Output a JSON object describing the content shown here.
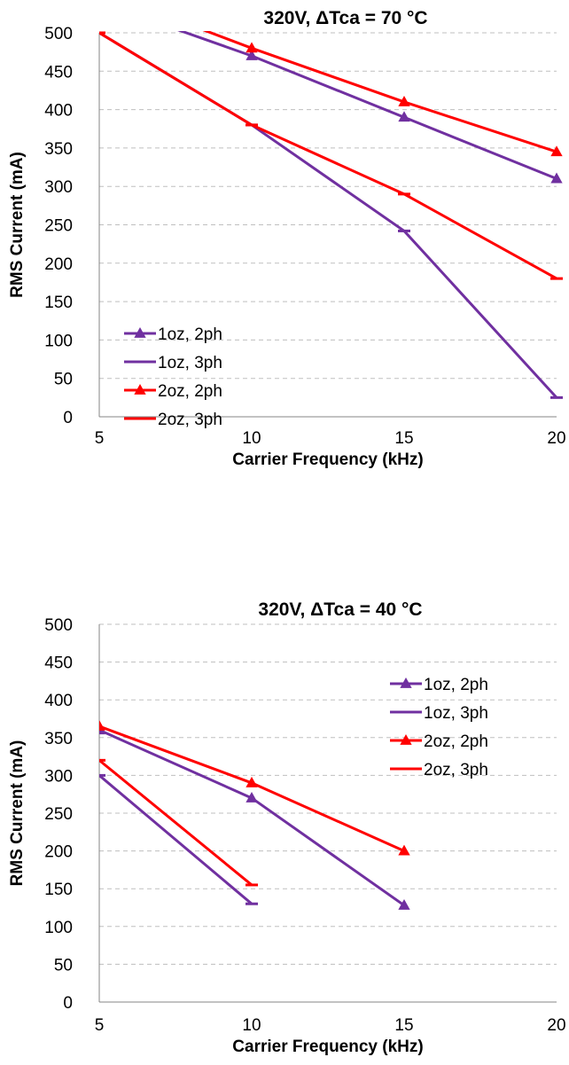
{
  "chart_data": [
    {
      "type": "line",
      "title": "320V, ΔTca = 70 °C",
      "xlabel": "Carrier Frequency (kHz)",
      "ylabel": "RMS Current (mA)",
      "xlim": [
        5,
        20
      ],
      "ylim": [
        0,
        500
      ],
      "x_ticks": [
        "5",
        "10",
        "15",
        "20"
      ],
      "y_ticks": [
        "0",
        "50",
        "100",
        "150",
        "200",
        "250",
        "300",
        "350",
        "400",
        "450",
        "500"
      ],
      "grid": "horizontal dashed",
      "legend_position": "lower-left",
      "series": [
        {
          "name": "1oz, 2ph",
          "color": "#7030A0",
          "marker": "triangle",
          "x": [
            5,
            10,
            15,
            20
          ],
          "values": [
            540,
            470,
            390,
            310
          ]
        },
        {
          "name": "1oz, 3ph",
          "color": "#7030A0",
          "marker": "dash",
          "x": [
            5,
            10,
            15,
            20
          ],
          "values": [
            500,
            380,
            242,
            25
          ]
        },
        {
          "name": "2oz, 2ph",
          "color": "#FF0000",
          "marker": "triangle",
          "x": [
            5,
            10,
            15,
            20
          ],
          "values": [
            555,
            480,
            410,
            345
          ]
        },
        {
          "name": "2oz, 3ph",
          "color": "#FF0000",
          "marker": "dash",
          "x": [
            5,
            10,
            15,
            20
          ],
          "values": [
            500,
            380,
            290,
            180
          ]
        }
      ]
    },
    {
      "type": "line",
      "title": "320V, ΔTca = 40 °C",
      "xlabel": "Carrier Frequency (kHz)",
      "ylabel": "RMS Current (mA)",
      "xlim": [
        5,
        20
      ],
      "ylim": [
        0,
        500
      ],
      "x_ticks": [
        "5",
        "10",
        "15",
        "20"
      ],
      "y_ticks": [
        "0",
        "50",
        "100",
        "150",
        "200",
        "250",
        "300",
        "350",
        "400",
        "450",
        "500"
      ],
      "grid": "horizontal dashed",
      "legend_position": "top-right",
      "series": [
        {
          "name": "1oz, 2ph",
          "color": "#7030A0",
          "marker": "triangle",
          "x": [
            5,
            10,
            15
          ],
          "values": [
            360,
            270,
            128
          ]
        },
        {
          "name": "1oz, 3ph",
          "color": "#7030A0",
          "marker": "dash",
          "x": [
            5,
            10
          ],
          "values": [
            300,
            130
          ]
        },
        {
          "name": "2oz, 2ph",
          "color": "#FF0000",
          "marker": "triangle",
          "x": [
            5,
            10,
            15
          ],
          "values": [
            365,
            290,
            200
          ]
        },
        {
          "name": "2oz, 3ph",
          "color": "#FF0000",
          "marker": "dash",
          "x": [
            5,
            10
          ],
          "values": [
            320,
            155
          ]
        }
      ]
    }
  ]
}
